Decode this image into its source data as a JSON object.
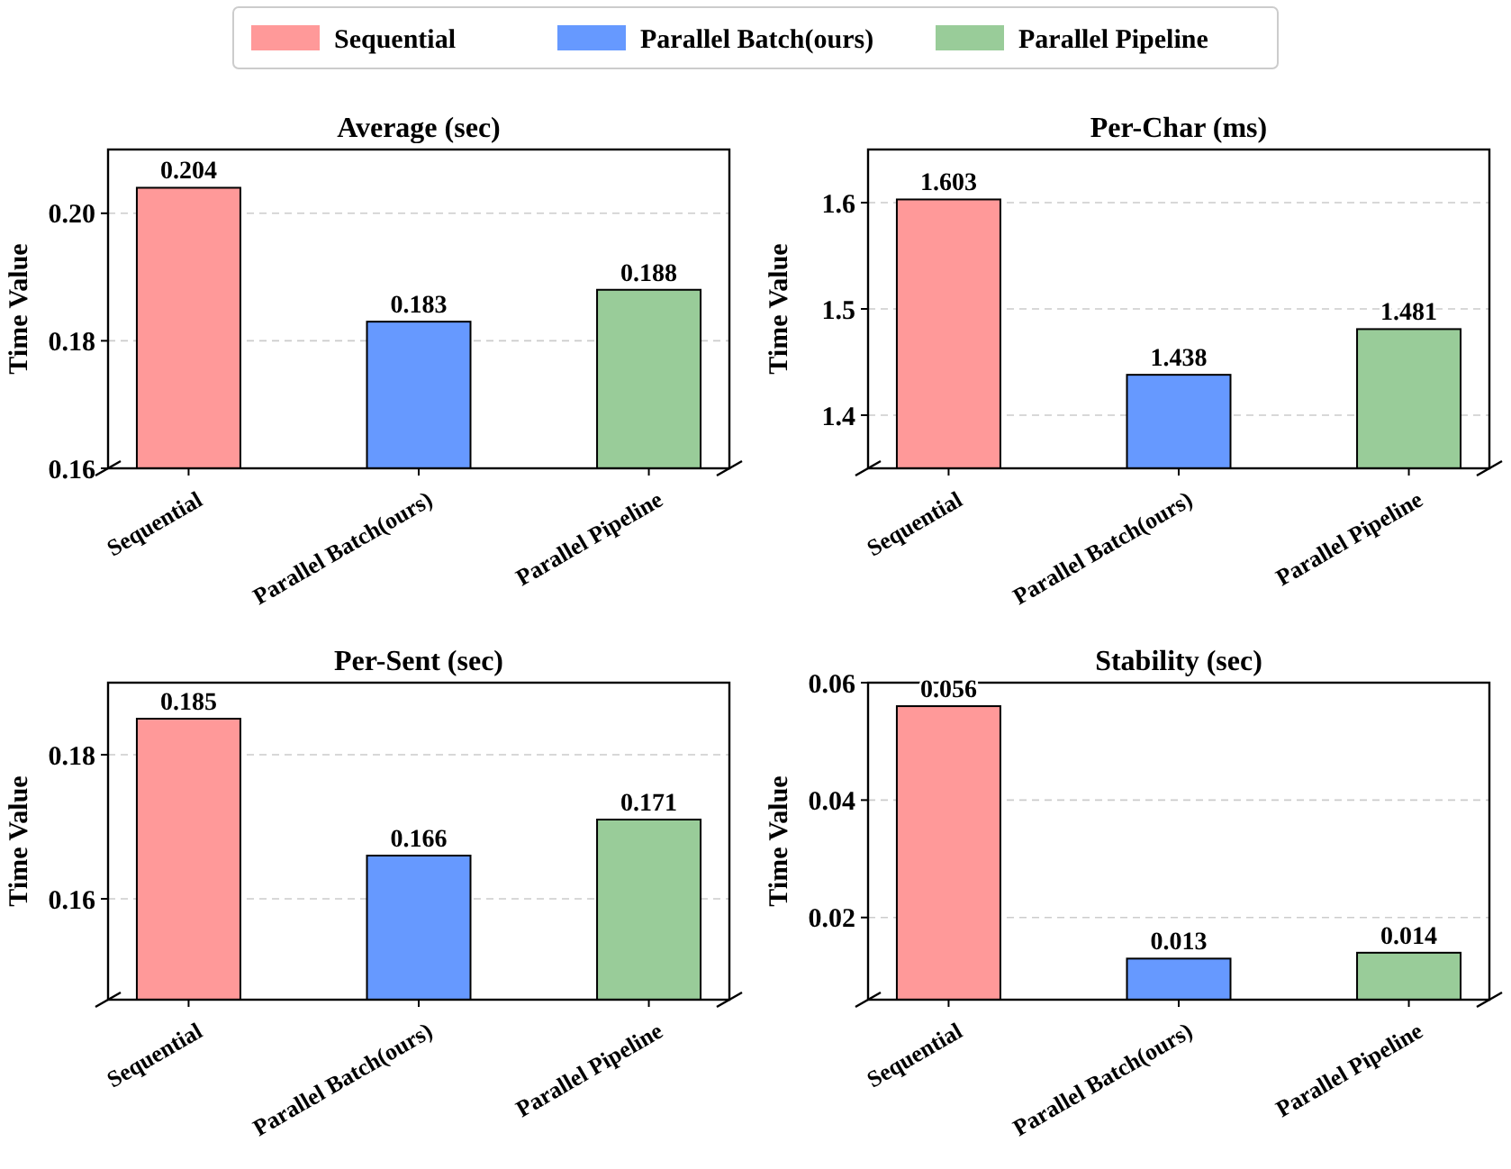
{
  "chart_data": [
    {
      "type": "bar",
      "title": "Average (sec)",
      "ylabel": "Time Value",
      "categories": [
        "Sequential",
        "Parallel Batch(ours)",
        "Parallel Pipeline"
      ],
      "series": [
        {
          "name": "Sequential",
          "color": "#ff9999",
          "values": [
            0.204,
            null,
            null
          ]
        },
        {
          "name": "Parallel Batch(ours)",
          "color": "#6699ff",
          "values": [
            null,
            0.183,
            null
          ]
        },
        {
          "name": "Parallel Pipeline",
          "color": "#99cc99",
          "values": [
            null,
            null,
            0.188
          ]
        }
      ],
      "ylim": [
        0.16,
        0.21
      ],
      "yticks": [
        0.16,
        0.18,
        {
          "value": 0.2,
          "label": "0.20"
        }
      ],
      "grid": "y",
      "data_labels": true,
      "legend": "top"
    },
    {
      "type": "bar",
      "title": "Per-Char (ms)",
      "ylabel": "Time Value",
      "categories": [
        "Sequential",
        "Parallel Batch(ours)",
        "Parallel Pipeline"
      ],
      "series": [
        {
          "color": "#ff9999",
          "values": [
            1.603,
            null,
            null
          ]
        },
        {
          "color": "#6699ff",
          "values": [
            null,
            1.438,
            null
          ]
        },
        {
          "color": "#99cc99",
          "values": [
            null,
            null,
            1.481
          ]
        }
      ],
      "ylim": [
        1.35,
        1.65
      ],
      "yticks": [
        1.4,
        1.5,
        1.6
      ],
      "grid": "y",
      "data_labels": true
    },
    {
      "type": "bar",
      "title": "Per-Sent (sec)",
      "ylabel": "Time Value",
      "categories": [
        "Sequential",
        "Parallel Batch(ours)",
        "Parallel Pipeline"
      ],
      "series": [
        {
          "color": "#ff9999",
          "values": [
            0.185,
            null,
            null
          ]
        },
        {
          "color": "#6699ff",
          "values": [
            null,
            0.166,
            null
          ]
        },
        {
          "color": "#99cc99",
          "values": [
            null,
            null,
            0.171
          ]
        }
      ],
      "ylim": [
        0.146,
        0.19
      ],
      "yticks": [
        0.16,
        0.18
      ],
      "grid": "y",
      "data_labels": true
    },
    {
      "type": "bar",
      "title": "Stability (sec)",
      "ylabel": "Time Value",
      "categories": [
        "Sequential",
        "Parallel Batch(ours)",
        "Parallel Pipeline"
      ],
      "series": [
        {
          "color": "#ff9999",
          "values": [
            0.056,
            null,
            null
          ]
        },
        {
          "color": "#6699ff",
          "values": [
            null,
            0.013,
            null
          ]
        },
        {
          "color": "#99cc99",
          "values": [
            null,
            null,
            0.014
          ]
        }
      ],
      "ylim": [
        0.006,
        0.06
      ],
      "yticks": [
        0.02,
        0.04,
        0.06
      ],
      "grid": "y",
      "data_labels": true
    }
  ]
}
